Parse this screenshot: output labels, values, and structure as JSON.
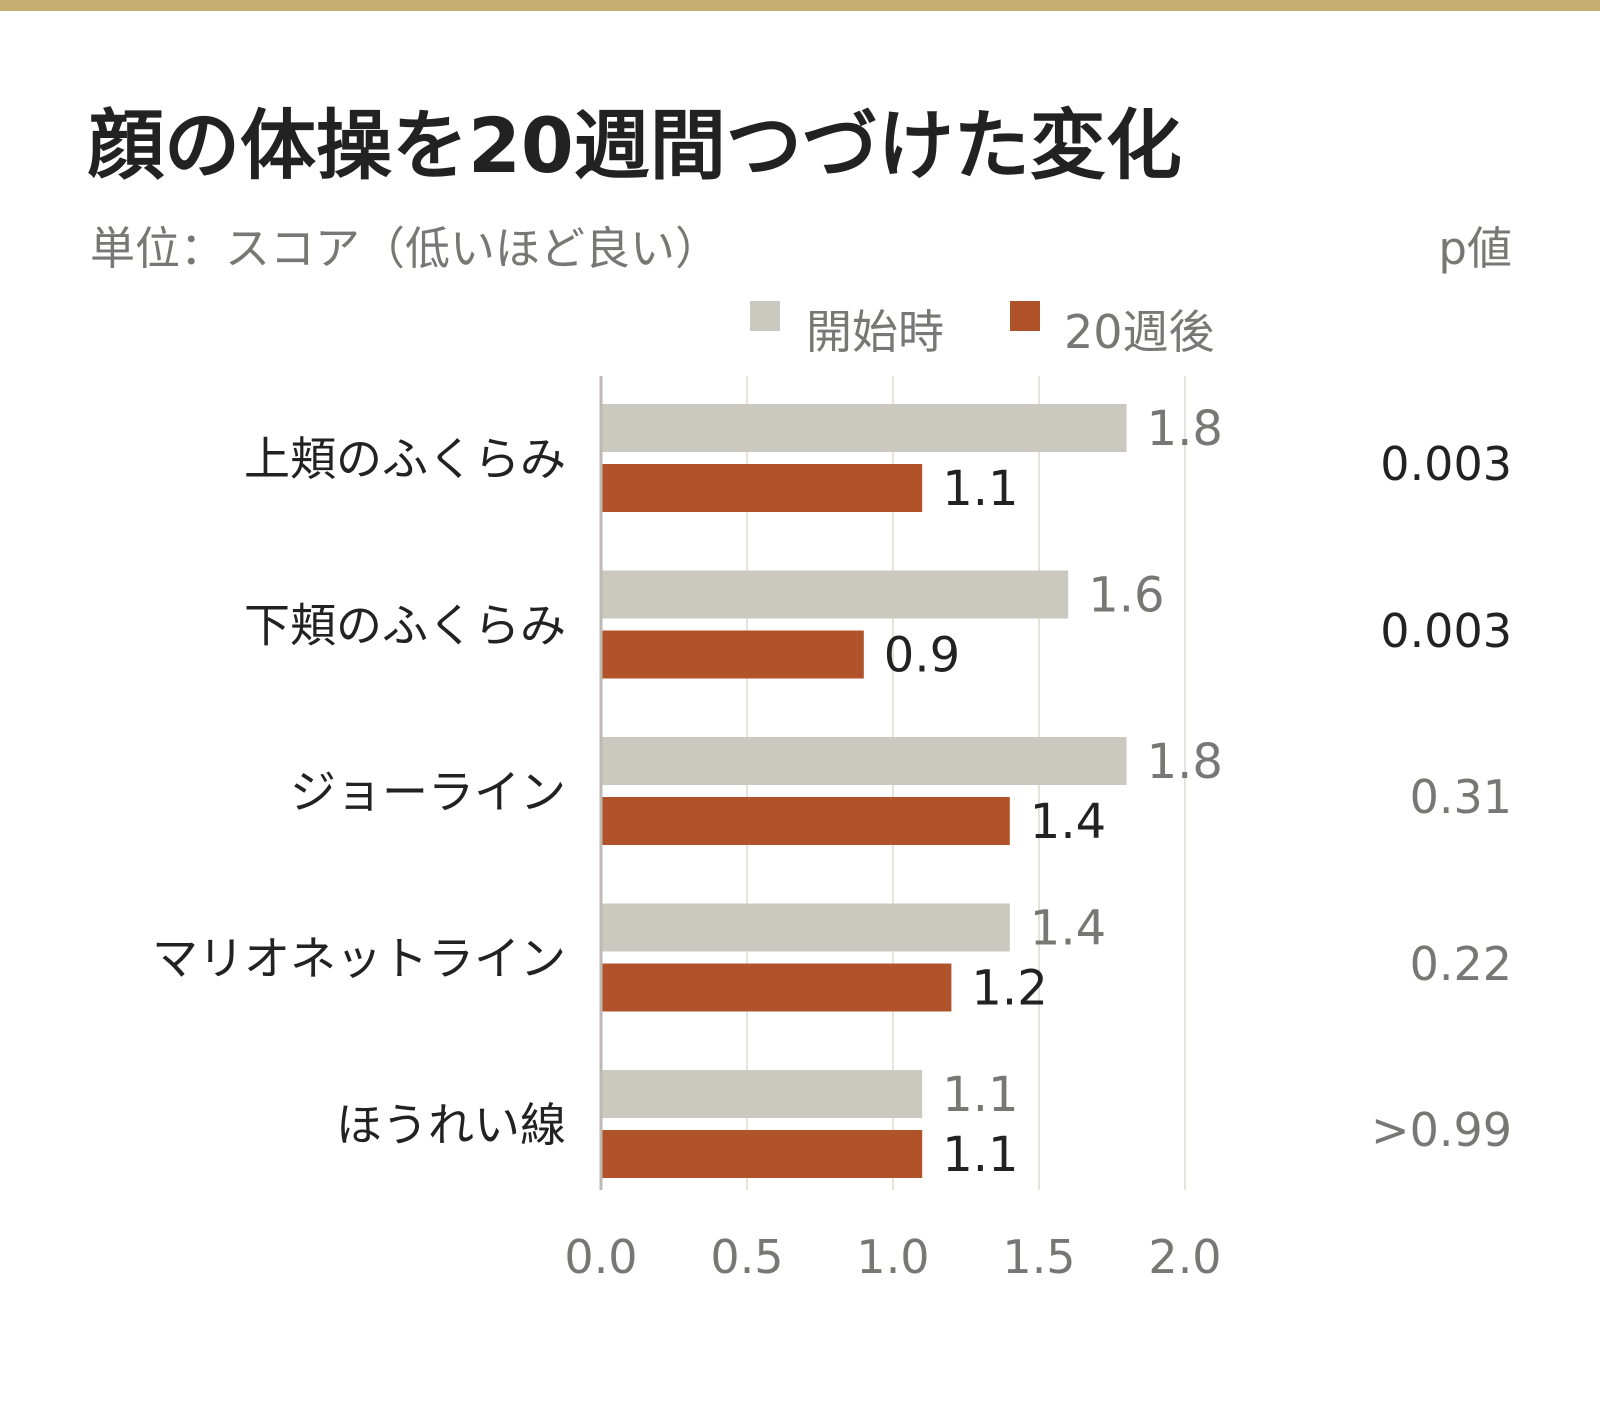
{
  "header": {
    "title": "顔の体操を20週間つづけた変化",
    "subtitle": "単位：スコア（低いほど良い）",
    "p_header": "p値"
  },
  "colors": {
    "rule": "#c5ad72",
    "before": "#cbc8bf",
    "after": "#b0532b",
    "text_dark": "#222222",
    "text_muted": "#777773",
    "grid": "#e6e3db",
    "axis": "#bdbab2"
  },
  "legend": [
    {
      "label": "開始時",
      "color": "#cbc8bf"
    },
    {
      "label": "20週後",
      "color": "#b0532b"
    }
  ],
  "chart_data": {
    "type": "bar",
    "orientation": "horizontal",
    "categories": [
      "上頬のふくらみ",
      "下頬のふくらみ",
      "ジョーライン",
      "マリオネットライン",
      "ほうれい線"
    ],
    "series": [
      {
        "name": "開始時",
        "values": [
          1.8,
          1.6,
          1.8,
          1.4,
          1.1
        ],
        "labels": [
          "1.8",
          "1.6",
          "1.8",
          "1.4",
          "1.1"
        ]
      },
      {
        "name": "20週後",
        "values": [
          1.1,
          0.9,
          1.4,
          1.2,
          1.1
        ],
        "labels": [
          "1.1",
          "0.9",
          "1.4",
          "1.2",
          "1.1"
        ]
      }
    ],
    "xlim": [
      0,
      2.0
    ],
    "xticks": [
      0,
      0.5,
      1.0,
      1.5,
      2.0
    ],
    "xtick_labels": [
      "0.0",
      "0.5",
      "1.0",
      "1.5",
      "2.0"
    ],
    "grid": true,
    "p_values": [
      "0.003",
      "0.003",
      "0.31",
      "0.22",
      ">0.99"
    ],
    "p_significant": [
      true,
      true,
      false,
      false,
      false
    ]
  }
}
